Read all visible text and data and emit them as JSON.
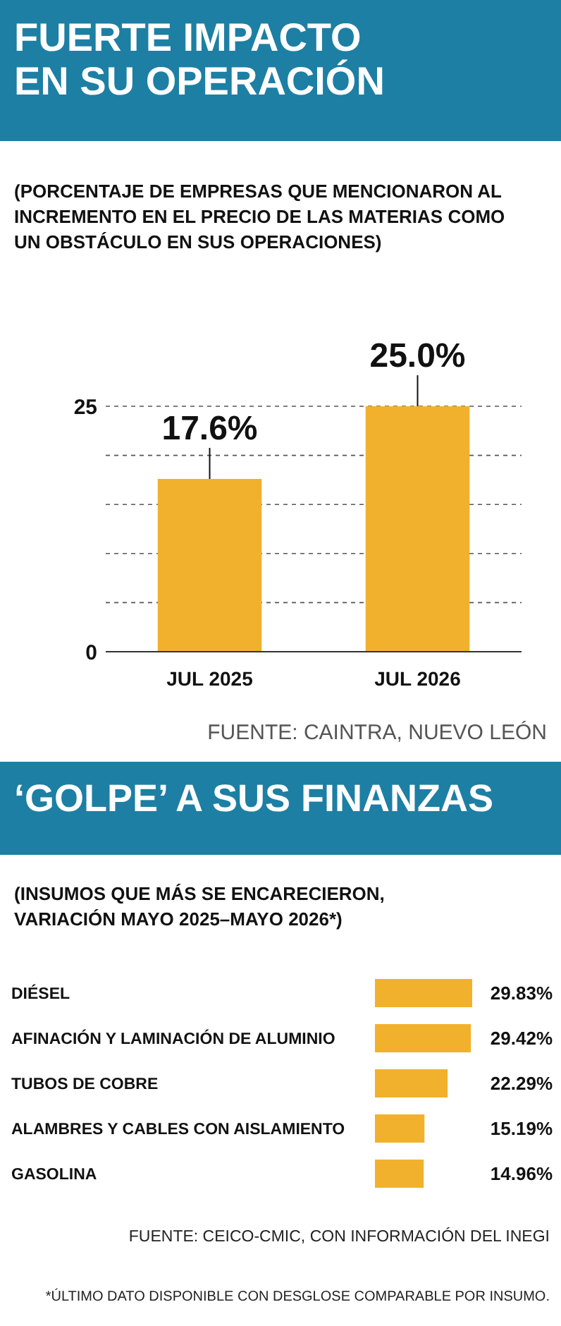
{
  "chart_data": [
    {
      "type": "bar",
      "title": "FUERTE IMPACTO EN SU OPERACIÓN",
      "subtitle": "(PORCENTAJE DE EMPRESAS QUE MENCIONARON AL INCREMENTO EN EL PRECIO DE LAS MATERIAS COMO UN OBSTÁCULO EN SUS OPERACIONES)",
      "categories": [
        "JUL 2025",
        "JUL 2026"
      ],
      "values": [
        17.6,
        25.0
      ],
      "value_labels": [
        "17.6%",
        "25.0%"
      ],
      "color": "#f2b12c",
      "ylim": [
        0,
        25
      ],
      "yticks": [
        0,
        {
          "value": 5,
          "label": null
        },
        {
          "value": 10,
          "label": null
        },
        {
          "value": 15,
          "label": null
        },
        {
          "value": 20,
          "label": null
        },
        25
      ],
      "grid": "y",
      "annotations": [
        "FUENTE: CAINTRA, NUEVO LEÓN"
      ]
    },
    {
      "type": "bar",
      "orientation": "horizontal",
      "title": "‘GOLPE’ A SUS FINANZAS",
      "subtitle": "(INSUMOS QUE MÁS SE ENCARECIERON, VARIACIÓN MAYO 2025–MAYO 2026*)",
      "categories": [
        "DIÉSEL",
        "AFINACIÓN Y LAMINACIÓN DE ALUMINIO",
        "TUBOS DE COBRE",
        "ALAMBRES Y CABLES CON AISLAMIENTO",
        "GASOLINA"
      ],
      "values": [
        29.83,
        29.42,
        22.29,
        15.19,
        14.96
      ],
      "value_labels": [
        "29.83%",
        "29.42%",
        "22.29%",
        "15.19%",
        "14.96%"
      ],
      "color": "#f2b12c",
      "annotations": [
        "FUENTE: CEICO-CMIC, CON INFORMACIÓN DEL INEGI",
        "*ÚLTIMO DATO DISPONIBLE CON DESGLOSE COMPARABLE POR INSUMO."
      ]
    }
  ]
}
